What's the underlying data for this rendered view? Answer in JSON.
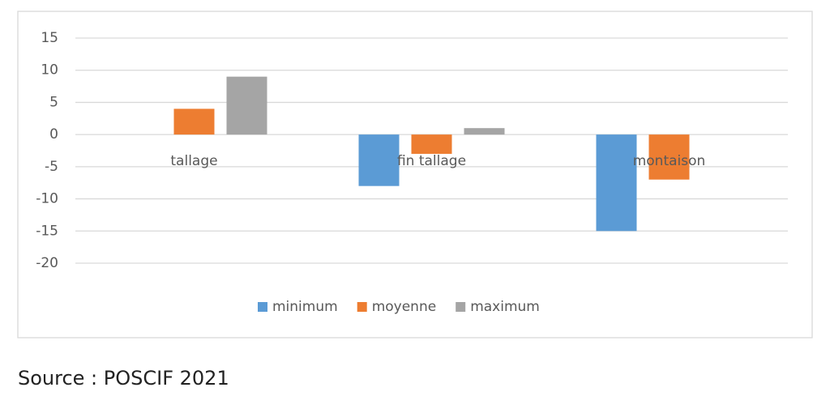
{
  "chart_data": {
    "type": "bar",
    "categories": [
      "tallage",
      "fin tallage",
      "montaison"
    ],
    "series": [
      {
        "name": "minimum",
        "color": "#5b9bd5",
        "values": [
          0,
          -8,
          -15
        ]
      },
      {
        "name": "moyenne",
        "color": "#ed7d31",
        "values": [
          4,
          -3,
          -7
        ]
      },
      {
        "name": "maximum",
        "color": "#a5a5a5",
        "values": [
          9,
          1,
          0
        ]
      }
    ],
    "ylim": [
      -20,
      15
    ],
    "yticks": [
      -20,
      -15,
      -10,
      -5,
      0,
      5,
      10,
      15
    ],
    "grid": true,
    "legend": "bottom",
    "source": "Source : POSCIF 2021"
  }
}
